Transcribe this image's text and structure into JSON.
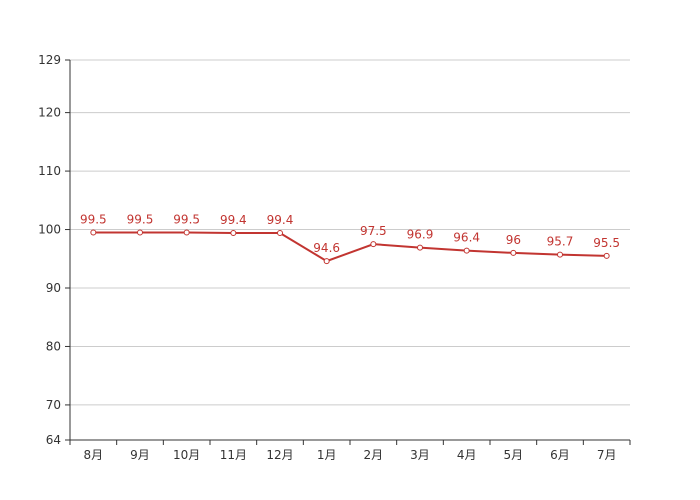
{
  "chart_data": {
    "type": "line",
    "title": "",
    "xlabel": "",
    "ylabel": "",
    "categories": [
      "8月",
      "9月",
      "10月",
      "11月",
      "12月",
      "1月",
      "2月",
      "3月",
      "4月",
      "5月",
      "6月",
      "7月"
    ],
    "series": [
      {
        "values": [
          99.5,
          99.5,
          99.5,
          99.4,
          99.4,
          94.6,
          97.5,
          96.9,
          96.4,
          96,
          95.7,
          95.5
        ],
        "data_labels": [
          "99.5",
          "99.5",
          "99.5",
          "99.4",
          "99.4",
          "94.6",
          "97.5",
          "96.9",
          "96.4",
          "96",
          "95.7",
          "95.5"
        ],
        "color": "#c23531"
      }
    ],
    "ylim": [
      64,
      129
    ],
    "y_ticks": [
      64,
      70,
      80,
      90,
      100,
      110,
      120,
      129
    ],
    "y_tick_labels": [
      "64",
      "70",
      "80",
      "90",
      "100",
      "110",
      "120",
      "129"
    ],
    "grid": true,
    "legend": "none"
  }
}
